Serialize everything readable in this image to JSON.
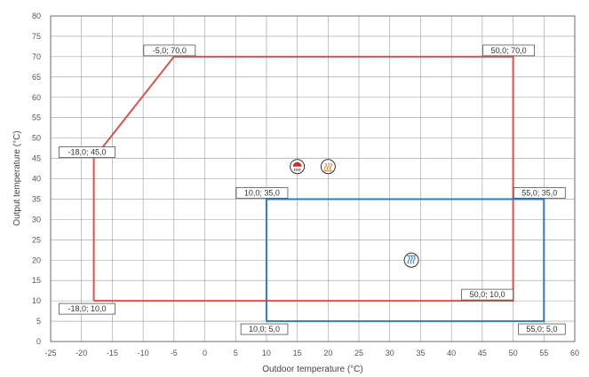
{
  "chart_data": {
    "type": "line",
    "xlabel": "Outdoor temperature (°C)",
    "ylabel": "Output temperature (°C)",
    "xlim": [
      -25,
      60
    ],
    "ylim": [
      0,
      80
    ],
    "xticks": [
      "-25",
      "-20",
      "-15",
      "-10",
      "-5",
      "0",
      "5",
      "10",
      "15",
      "20",
      "25",
      "30",
      "35",
      "40",
      "45",
      "50",
      "55",
      "60"
    ],
    "yticks": [
      "0",
      "5",
      "10",
      "15",
      "20",
      "25",
      "30",
      "35",
      "40",
      "45",
      "50",
      "55",
      "60",
      "65",
      "70",
      "75",
      "80"
    ],
    "grid": true,
    "series": [
      {
        "color": "#d9534f",
        "points": [
          [
            -18,
            10
          ],
          [
            -18,
            45
          ],
          [
            -5,
            70
          ],
          [
            50,
            70
          ],
          [
            50,
            10
          ],
          [
            -18,
            10
          ]
        ]
      },
      {
        "color": "#2e7bbf",
        "points": [
          [
            10,
            5
          ],
          [
            10,
            35
          ],
          [
            55,
            35
          ],
          [
            55,
            5
          ],
          [
            10,
            5
          ]
        ]
      }
    ],
    "annotations": [
      {
        "text": "-5,0; 70,0",
        "x": -5,
        "y": 70,
        "anchor": "above-left"
      },
      {
        "text": "50,0; 70,0",
        "x": 50,
        "y": 70,
        "anchor": "above-left"
      },
      {
        "text": "-18,0; 45,0",
        "x": -18,
        "y": 45,
        "anchor": "above-left"
      },
      {
        "text": "10,0; 35,0",
        "x": 10,
        "y": 35,
        "anchor": "above-left"
      },
      {
        "text": "55,0; 35,0",
        "x": 55,
        "y": 35,
        "anchor": "above-left"
      },
      {
        "text": "50,0; 10,0",
        "x": 50,
        "y": 10,
        "anchor": "above-left"
      },
      {
        "text": "-18,0; 10,0",
        "x": -18,
        "y": 10,
        "anchor": "below-left"
      },
      {
        "text": "10,0; 5,0",
        "x": 10,
        "y": 5,
        "anchor": "below-left"
      },
      {
        "text": "55,0; 5,0",
        "x": 55,
        "y": 5,
        "anchor": "below-left"
      }
    ],
    "icons": [
      {
        "name": "shower-icon",
        "x": 15,
        "y": 43,
        "color": "#c9302c"
      },
      {
        "name": "heating-icon",
        "x": 20,
        "y": 43,
        "color": "#e07b20"
      },
      {
        "name": "cooling-icon",
        "x": 33.5,
        "y": 20,
        "color": "#2e7bbf"
      }
    ]
  }
}
